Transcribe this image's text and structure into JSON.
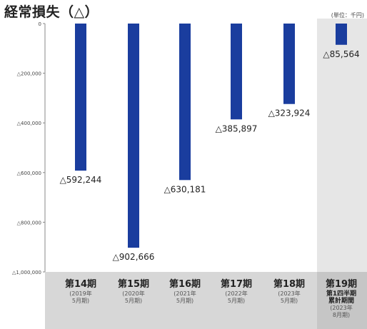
{
  "title": "経常損失（△）",
  "unit": "(単位：千円)",
  "chart_data": {
    "type": "bar",
    "categories": [
      "第14期",
      "第15期",
      "第16期",
      "第17期",
      "第18期",
      "第19期"
    ],
    "category_sublabels": [
      [
        "(2019年",
        "5月期)"
      ],
      [
        "(2020年",
        "5月期)"
      ],
      [
        "(2021年",
        "5月期)"
      ],
      [
        "(2022年",
        "5月期)"
      ],
      [
        "(2023年",
        "5月期)"
      ],
      [
        "第1四半期",
        "累計期間",
        "(2023年",
        "8月期)"
      ]
    ],
    "values": [
      -592244,
      -902666,
      -630181,
      -385897,
      -323924,
      -85564
    ],
    "value_labels": [
      "△592,244",
      "△902,666",
      "△630,181",
      "△385,897",
      "△323,924",
      "△85,564"
    ],
    "yticks": [
      0,
      -200000,
      -400000,
      -600000,
      -800000,
      -1000000
    ],
    "ytick_labels": [
      "0",
      "△200,000",
      "△400,000",
      "△600,000",
      "△800,000",
      "△1,000,000"
    ],
    "ylim": [
      -1000000,
      0
    ],
    "bar_color": "#1a3d9e",
    "highlight_color": "#e6e6e6",
    "axis_band_color": "#d7d7d7",
    "highlight_index": 5,
    "title": "",
    "xlabel": "",
    "ylabel": ""
  }
}
